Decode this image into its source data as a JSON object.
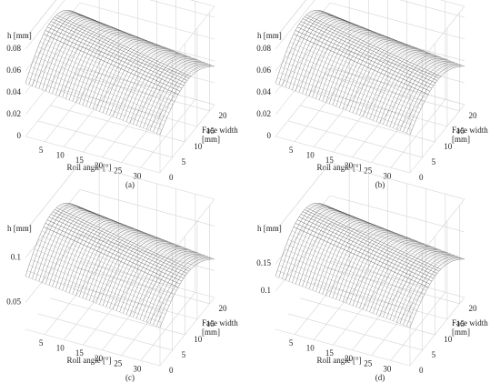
{
  "chart_data": [
    {
      "type": "surface",
      "panel_label": "(a)",
      "zlabel": "h [mm]",
      "xlabel": "Roll angle [°]",
      "ylabel": "Face width [mm]",
      "xlim": [
        0,
        35
      ],
      "xticks": [
        5,
        10,
        15,
        20,
        25,
        30
      ],
      "ylim": [
        0,
        22
      ],
      "yticks": [
        0,
        5,
        10,
        15,
        20
      ],
      "zlim": [
        0,
        0.09
      ],
      "zticks": [
        0,
        0.02,
        0.04,
        0.06,
        0.08
      ],
      "color": "#555555"
    },
    {
      "type": "surface",
      "panel_label": "(b)",
      "zlabel": "h [mm]",
      "xlabel": "Roll angle [°]",
      "ylabel": "Face width [mm]",
      "xlim": [
        0,
        35
      ],
      "xticks": [
        5,
        10,
        15,
        20,
        25,
        30
      ],
      "ylim": [
        0,
        22
      ],
      "yticks": [
        0,
        5,
        10,
        15,
        20
      ],
      "zlim": [
        0,
        0.09
      ],
      "zticks": [
        0,
        0.02,
        0.04,
        0.06,
        0.08
      ],
      "color": "#555555"
    },
    {
      "type": "surface",
      "panel_label": "(c)",
      "zlabel": "h [mm]",
      "xlabel": "Roll angle [°]",
      "ylabel": "Face width [mm]",
      "xlim": [
        0,
        35
      ],
      "xticks": [
        5,
        10,
        15,
        20,
        25,
        30
      ],
      "ylim": [
        0,
        22
      ],
      "yticks": [
        0,
        5,
        10,
        15,
        20
      ],
      "zlim": [
        0.02,
        0.13
      ],
      "zticks": [
        0.05,
        0.1
      ],
      "color": "#555555"
    },
    {
      "type": "surface",
      "panel_label": "(d)",
      "zlabel": "h [mm]",
      "xlabel": "Roll angle [°]",
      "ylabel": "Face width [mm]",
      "xlim": [
        0,
        35
      ],
      "xticks": [
        5,
        10,
        15,
        20,
        25,
        30
      ],
      "ylim": [
        0,
        22
      ],
      "yticks": [
        0,
        5,
        10,
        15,
        20
      ],
      "zlim": [
        0.03,
        0.21
      ],
      "zticks": [
        0.1,
        0.15
      ],
      "color": "#555555"
    }
  ]
}
